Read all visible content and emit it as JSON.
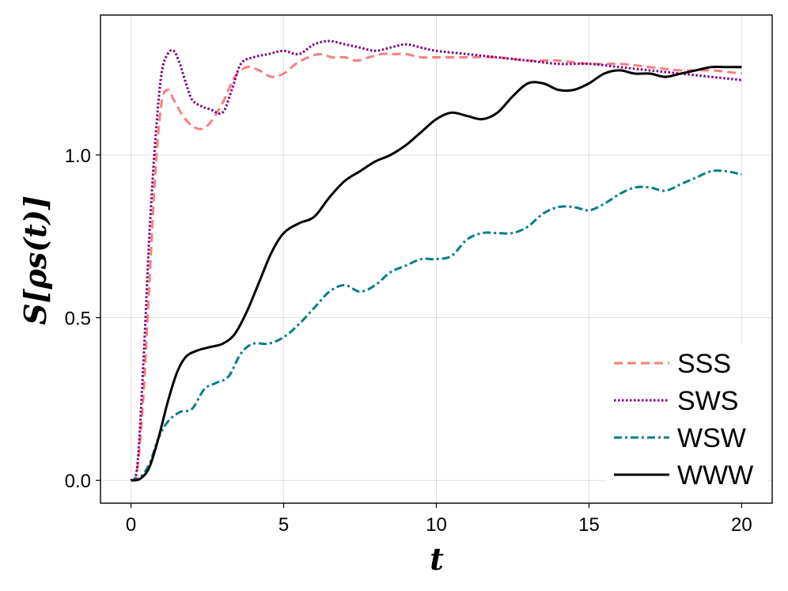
{
  "chart_data": {
    "type": "line",
    "xlabel": "t",
    "ylabel": "S[ρs(t)]",
    "xlim": [
      -1,
      21
    ],
    "ylim": [
      -0.07,
      1.43
    ],
    "x_ticks": [
      0,
      5,
      10,
      15,
      20
    ],
    "x_tick_labels": [
      "0",
      "5",
      "10",
      "15",
      "20"
    ],
    "y_ticks": [
      0.0,
      0.5,
      1.0
    ],
    "y_tick_labels": [
      "0.0",
      "0.5",
      "1.0"
    ],
    "grid": true,
    "legend_position": "bottom-right",
    "series": [
      {
        "name": "SSS",
        "color": "#fa7f7f",
        "dash": "dashed",
        "x": [
          0,
          0.2,
          0.4,
          0.6,
          0.8,
          1.0,
          1.2,
          1.4,
          1.7,
          2.0,
          2.3,
          2.6,
          3.0,
          3.4,
          3.8,
          4.2,
          4.6,
          5.0,
          5.4,
          5.8,
          6.2,
          6.6,
          7.0,
          7.4,
          7.8,
          8.2,
          8.6,
          9.0,
          9.5,
          10.0,
          11,
          12,
          13,
          14,
          15,
          16,
          17,
          18,
          19,
          20
        ],
        "y": [
          0,
          0.03,
          0.25,
          0.6,
          0.95,
          1.16,
          1.2,
          1.17,
          1.12,
          1.09,
          1.08,
          1.1,
          1.16,
          1.24,
          1.27,
          1.26,
          1.24,
          1.25,
          1.28,
          1.3,
          1.31,
          1.3,
          1.3,
          1.29,
          1.3,
          1.31,
          1.31,
          1.31,
          1.3,
          1.3,
          1.3,
          1.3,
          1.29,
          1.29,
          1.28,
          1.28,
          1.27,
          1.26,
          1.26,
          1.25
        ]
      },
      {
        "name": "SWS",
        "color": "#800080",
        "dash": "dotted",
        "x": [
          0,
          0.2,
          0.4,
          0.6,
          0.8,
          1.0,
          1.2,
          1.4,
          1.6,
          1.8,
          2.0,
          2.3,
          2.6,
          3.0,
          3.3,
          3.6,
          4.0,
          4.5,
          5.0,
          5.5,
          6.0,
          6.5,
          7.0,
          7.5,
          8.0,
          8.5,
          9.0,
          9.5,
          10.0,
          11,
          12,
          13,
          14,
          15,
          16,
          17,
          18,
          19,
          20
        ],
        "y": [
          0,
          0.04,
          0.35,
          0.75,
          1.05,
          1.25,
          1.31,
          1.32,
          1.28,
          1.22,
          1.17,
          1.15,
          1.14,
          1.13,
          1.2,
          1.28,
          1.3,
          1.31,
          1.32,
          1.31,
          1.34,
          1.35,
          1.34,
          1.33,
          1.32,
          1.33,
          1.34,
          1.33,
          1.32,
          1.31,
          1.3,
          1.29,
          1.28,
          1.28,
          1.27,
          1.26,
          1.25,
          1.24,
          1.23
        ]
      },
      {
        "name": "WSW",
        "color": "#008080",
        "dash": "dashdot",
        "x": [
          0,
          0.3,
          0.6,
          0.9,
          1.2,
          1.6,
          2.0,
          2.4,
          2.8,
          3.2,
          3.6,
          4.0,
          4.5,
          5.0,
          5.5,
          6.0,
          6.5,
          7.0,
          7.5,
          8.0,
          8.5,
          9.0,
          9.5,
          10.0,
          10.5,
          11.0,
          11.5,
          12.0,
          12.5,
          13.0,
          13.5,
          14.0,
          14.5,
          15.0,
          15.5,
          16.0,
          16.5,
          17.0,
          17.5,
          18.0,
          18.5,
          19.0,
          19.5,
          20.0
        ],
        "y": [
          0,
          0.01,
          0.05,
          0.13,
          0.18,
          0.21,
          0.22,
          0.28,
          0.3,
          0.32,
          0.39,
          0.42,
          0.42,
          0.44,
          0.48,
          0.53,
          0.58,
          0.6,
          0.58,
          0.6,
          0.64,
          0.66,
          0.68,
          0.68,
          0.69,
          0.74,
          0.76,
          0.76,
          0.76,
          0.78,
          0.82,
          0.84,
          0.84,
          0.83,
          0.85,
          0.88,
          0.9,
          0.9,
          0.89,
          0.91,
          0.93,
          0.95,
          0.95,
          0.94
        ]
      },
      {
        "name": "WWW",
        "color": "#000000",
        "dash": "solid",
        "x": [
          0,
          0.3,
          0.6,
          0.9,
          1.2,
          1.5,
          1.8,
          2.2,
          2.6,
          3.0,
          3.4,
          3.8,
          4.2,
          4.6,
          5.0,
          5.5,
          6.0,
          6.5,
          7.0,
          7.5,
          8.0,
          8.5,
          9.0,
          9.5,
          10.0,
          10.5,
          11.0,
          11.5,
          12.0,
          12.5,
          13.0,
          13.5,
          14.0,
          14.5,
          15.0,
          15.5,
          16.0,
          16.5,
          17.0,
          17.5,
          18.0,
          18.5,
          19.0,
          19.5,
          20.0
        ],
        "y": [
          0,
          0.005,
          0.04,
          0.13,
          0.24,
          0.33,
          0.38,
          0.4,
          0.41,
          0.42,
          0.45,
          0.52,
          0.61,
          0.7,
          0.76,
          0.79,
          0.81,
          0.87,
          0.92,
          0.95,
          0.98,
          1.0,
          1.03,
          1.07,
          1.11,
          1.13,
          1.12,
          1.11,
          1.13,
          1.18,
          1.22,
          1.22,
          1.2,
          1.2,
          1.22,
          1.25,
          1.26,
          1.25,
          1.25,
          1.24,
          1.25,
          1.26,
          1.27,
          1.27,
          1.27
        ]
      }
    ]
  }
}
